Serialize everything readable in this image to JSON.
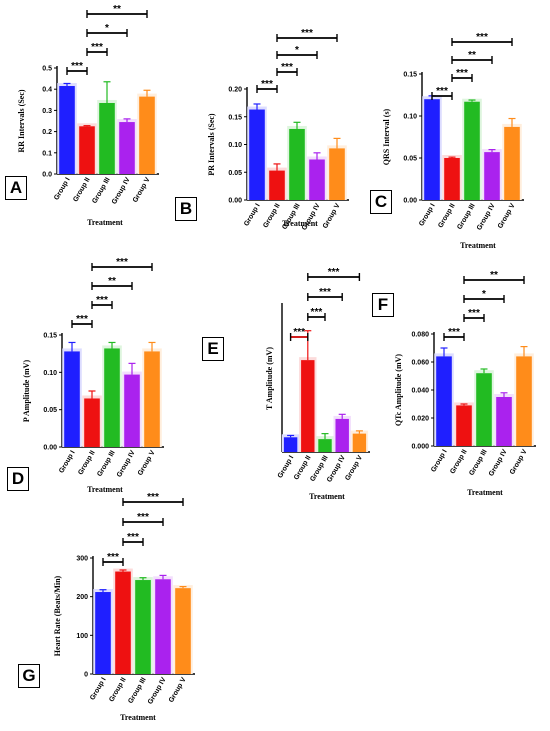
{
  "figure": {
    "categories": [
      "Group I",
      "Group II",
      "Group III",
      "Group IV",
      "Group V"
    ],
    "xlabel": "Treatment",
    "colors": [
      "#1f1fff",
      "#ee1111",
      "#22bb22",
      "#aa22ee",
      "#ff8c1a"
    ]
  },
  "chart_data": [
    {
      "id": "A",
      "type": "bar",
      "letter": "A",
      "ylabel": "RR Intervals (Sec)",
      "ylim": [
        0,
        0.5
      ],
      "yticks": [
        "0.0",
        "0.1",
        "0.2",
        "0.3",
        "0.4",
        "0.5"
      ],
      "values": [
        0.415,
        0.225,
        0.335,
        0.245,
        0.365
      ],
      "errors": [
        0.012,
        0.003,
        0.1,
        0.015,
        0.03
      ],
      "significance": [
        {
          "from": 1,
          "to": 2,
          "label": "***"
        },
        {
          "from": 2,
          "to": 3,
          "label": "***"
        },
        {
          "from": 2,
          "to": 4,
          "label": "*"
        },
        {
          "from": 2,
          "to": 5,
          "label": "**"
        }
      ]
    },
    {
      "id": "B",
      "type": "bar",
      "letter": "B",
      "ylabel": "PR Intervals (Sec)",
      "ylim": [
        0,
        0.2
      ],
      "yticks": [
        "0.00",
        "0.05",
        "0.10",
        "0.15",
        "0.20"
      ],
      "values": [
        0.163,
        0.053,
        0.128,
        0.073,
        0.093
      ],
      "errors": [
        0.01,
        0.012,
        0.012,
        0.012,
        0.018
      ],
      "significance": [
        {
          "from": 1,
          "to": 2,
          "label": "***"
        },
        {
          "from": 2,
          "to": 3,
          "label": "***"
        },
        {
          "from": 2,
          "to": 4,
          "label": "*"
        },
        {
          "from": 2,
          "to": 5,
          "label": "***"
        }
      ]
    },
    {
      "id": "C",
      "type": "bar",
      "letter": "C",
      "ylabel": "QRS Interval (s)",
      "ylim": [
        0,
        0.15
      ],
      "yticks": [
        "0.00",
        "0.05",
        "0.10",
        "0.15"
      ],
      "values": [
        0.12,
        0.05,
        0.117,
        0.057,
        0.087
      ],
      "errors": [
        0.004,
        0.001,
        0.002,
        0.003,
        0.01
      ],
      "significance": [
        {
          "from": 1,
          "to": 2,
          "label": "***"
        },
        {
          "from": 2,
          "to": 3,
          "label": "***"
        },
        {
          "from": 2,
          "to": 4,
          "label": "**"
        },
        {
          "from": 2,
          "to": 5,
          "label": "***"
        }
      ]
    },
    {
      "id": "D",
      "type": "bar",
      "letter": "D",
      "ylabel": "P Amplitude (mV)",
      "ylim": [
        0,
        0.15
      ],
      "yticks": [
        "0.00",
        "0.05",
        "0.10",
        "0.15"
      ],
      "values": [
        0.128,
        0.065,
        0.132,
        0.097,
        0.128
      ],
      "errors": [
        0.012,
        0.01,
        0.008,
        0.015,
        0.012
      ],
      "significance": [
        {
          "from": 1,
          "to": 2,
          "label": "***"
        },
        {
          "from": 2,
          "to": 3,
          "label": "***"
        },
        {
          "from": 2,
          "to": 4,
          "label": "**"
        },
        {
          "from": 2,
          "to": 5,
          "label": "***"
        }
      ]
    },
    {
      "id": "E",
      "type": "bar",
      "letter": "E",
      "ylabel": "T Amplitude (mV)",
      "ylim": [
        0,
        0.8
      ],
      "yticks": [],
      "values": [
        0.08,
        0.5,
        0.07,
        0.18,
        0.1
      ],
      "errors": [
        0.01,
        0.16,
        0.03,
        0.025,
        0.015
      ],
      "significance": [
        {
          "from": 1,
          "to": 2,
          "label": "***"
        },
        {
          "from": 2,
          "to": 3,
          "label": "***"
        },
        {
          "from": 2,
          "to": 4,
          "label": "***"
        },
        {
          "from": 2,
          "to": 5,
          "label": "***"
        }
      ]
    },
    {
      "id": "F",
      "type": "bar",
      "letter": "F",
      "ylabel": "QTc Amplitude (mV)",
      "ylim": [
        0,
        0.08
      ],
      "yticks": [
        "0.000",
        "0.020",
        "0.040",
        "0.060",
        "0.080"
      ],
      "values": [
        0.064,
        0.029,
        0.052,
        0.035,
        0.064
      ],
      "errors": [
        0.006,
        0.001,
        0.003,
        0.003,
        0.007
      ],
      "significance": [
        {
          "from": 1,
          "to": 2,
          "label": "***"
        },
        {
          "from": 2,
          "to": 3,
          "label": "***"
        },
        {
          "from": 2,
          "to": 4,
          "label": "*"
        },
        {
          "from": 2,
          "to": 5,
          "label": "**"
        }
      ]
    },
    {
      "id": "G",
      "type": "bar",
      "letter": "G",
      "ylabel": "Heart Rate (Beats/Min)",
      "ylim": [
        0,
        300
      ],
      "yticks": [
        "0",
        "100",
        "200",
        "300"
      ],
      "values": [
        212,
        265,
        243,
        245,
        222
      ],
      "errors": [
        6,
        4,
        6,
        10,
        4
      ],
      "significance": [
        {
          "from": 1,
          "to": 2,
          "label": "***"
        },
        {
          "from": 2,
          "to": 3,
          "label": "***"
        },
        {
          "from": 2,
          "to": 4,
          "label": "***"
        },
        {
          "from": 2,
          "to": 5,
          "label": "***"
        }
      ]
    }
  ]
}
